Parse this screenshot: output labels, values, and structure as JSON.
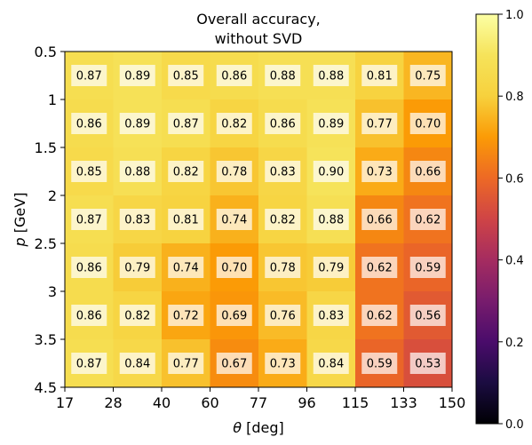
{
  "chart_data": {
    "type": "heatmap",
    "title_lines": [
      "Overall accuracy,",
      "without SVD"
    ],
    "xlabel_symbol": "θ",
    "xlabel_unit": " [deg]",
    "ylabel_symbol": "p",
    "ylabel_unit": " [GeV]",
    "x_tick_labels": [
      "17",
      "28",
      "40",
      "60",
      "77",
      "96",
      "115",
      "133",
      "150"
    ],
    "y_tick_labels": [
      "0.5",
      "1",
      "1.5",
      "2",
      "2.5",
      "3",
      "3.5",
      "4.5"
    ],
    "values": [
      [
        0.87,
        0.89,
        0.85,
        0.86,
        0.88,
        0.88,
        0.81,
        0.75
      ],
      [
        0.86,
        0.89,
        0.87,
        0.82,
        0.86,
        0.89,
        0.77,
        0.7
      ],
      [
        0.85,
        0.88,
        0.82,
        0.78,
        0.83,
        0.9,
        0.73,
        0.66
      ],
      [
        0.87,
        0.83,
        0.81,
        0.74,
        0.82,
        0.88,
        0.66,
        0.62
      ],
      [
        0.86,
        0.79,
        0.74,
        0.7,
        0.78,
        0.79,
        0.62,
        0.59
      ],
      [
        0.86,
        0.82,
        0.72,
        0.69,
        0.76,
        0.83,
        0.62,
        0.56
      ],
      [
        0.87,
        0.84,
        0.77,
        0.67,
        0.73,
        0.84,
        0.59,
        0.53
      ]
    ],
    "colormap": "inferno",
    "color_range": [
      0.0,
      1.0
    ],
    "colorbar_ticks": [
      "0.0",
      "0.2",
      "0.4",
      "0.6",
      "0.8",
      "1.0"
    ],
    "colorbar_tick_values": [
      0.0,
      0.2,
      0.4,
      0.6,
      0.8,
      1.0
    ],
    "value_labels": true
  }
}
